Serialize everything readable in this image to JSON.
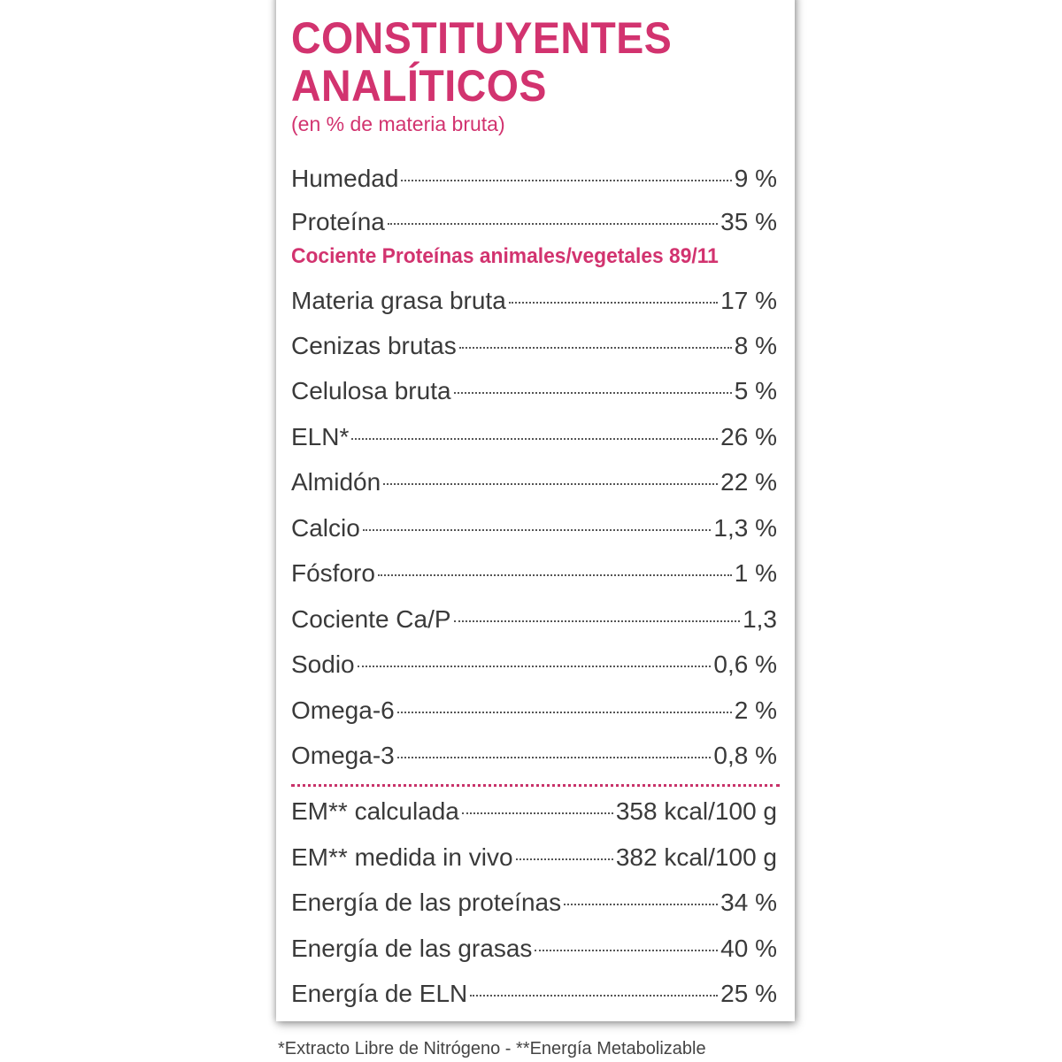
{
  "title_line1": "CONSTITUYENTES",
  "title_line2": "ANALÍTICOS",
  "subtitle": "(en % de materia bruta)",
  "accent_color": "#d2336f",
  "rows_top": [
    {
      "label": "Humedad",
      "value": "9 %"
    },
    {
      "label": "Proteína",
      "value": "35 %"
    }
  ],
  "protein_ratio": "Cociente Proteínas animales/vegetales 89/11",
  "rows_main": [
    {
      "label": "Materia grasa bruta",
      "value": "17 %"
    },
    {
      "label": "Cenizas brutas",
      "value": "8 %"
    },
    {
      "label": "Celulosa bruta",
      "value": "5 %"
    },
    {
      "label": "ELN*",
      "value": "26 %"
    },
    {
      "label": "Almidón",
      "value": "22 %"
    },
    {
      "label": "Calcio",
      "value": "1,3 %"
    },
    {
      "label": "Fósforo",
      "value": "1 %"
    },
    {
      "label": "Cociente Ca/P",
      "value": "1,3"
    },
    {
      "label": "Sodio",
      "value": "0,6 %"
    },
    {
      "label": "Omega-6",
      "value": "2 %"
    },
    {
      "label": "Omega-3",
      "value": "0,8 %"
    }
  ],
  "rows_energy": [
    {
      "label": "EM** calculada",
      "value": "358 kcal/100 g"
    },
    {
      "label": "EM** medida in vivo",
      "value": "382 kcal/100 g"
    },
    {
      "label": "Energía de las proteínas",
      "value": "34 %"
    },
    {
      "label": "Energía de las grasas",
      "value": "40 %"
    },
    {
      "label": "Energía de ELN",
      "value": "25 %"
    }
  ],
  "footnote": "*Extracto Libre de Nitrógeno - **Energía Metabolizable"
}
